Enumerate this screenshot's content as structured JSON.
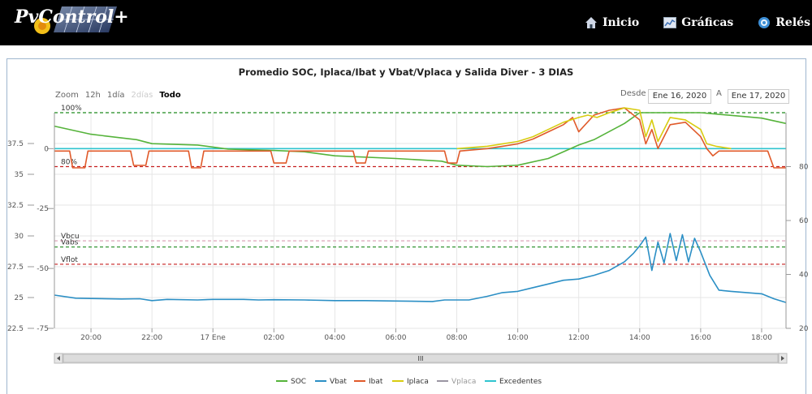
{
  "nav": {
    "logo_text": "PvControl+",
    "items": [
      {
        "label": "Inicio",
        "icon": "home-icon"
      },
      {
        "label": "Gráficas",
        "icon": "chart-icon"
      },
      {
        "label": "Relés",
        "icon": "relay-icon"
      }
    ]
  },
  "controls": {
    "zoom_label": "Zoom",
    "zoom_options": [
      "12h",
      "1día",
      "2días",
      "Todo"
    ],
    "zoom_selected": "Todo",
    "zoom_disabled": "2días",
    "desde_label": "Desde",
    "desde_value": "Ene 16, 2020",
    "a_label": "A",
    "a_value": "Ene 17, 2020",
    "scrollbar_grip": "III"
  },
  "colors": {
    "soc": "#55b33a",
    "vbat": "#2b8fc5",
    "ibat": "#e05a2a",
    "iplaca": "#d8cc10",
    "vplaca": "#9a95a2",
    "excedentes": "#2fc4cf",
    "ref_green": "#1f8a1f",
    "ref_red": "#c72020",
    "ref_pink": "#d89ab0"
  },
  "chart_data": {
    "type": "line",
    "title": "Promedio SOC, Iplaca/Ibat y Vbat/Vplaca y Salida Diver - 3 DIAS",
    "x_unit": "hour",
    "x_range": [
      18.8,
      42.8
    ],
    "x_ticks": [
      {
        "x": 20,
        "label": "20:00"
      },
      {
        "x": 22,
        "label": "22:00"
      },
      {
        "x": 24,
        "label": "17 Ene"
      },
      {
        "x": 26,
        "label": "02:00"
      },
      {
        "x": 28,
        "label": "04:00"
      },
      {
        "x": 30,
        "label": "06:00"
      },
      {
        "x": 32,
        "label": "08:00"
      },
      {
        "x": 34,
        "label": "10:00"
      },
      {
        "x": 36,
        "label": "12:00"
      },
      {
        "x": 38,
        "label": "14:00"
      },
      {
        "x": 40,
        "label": "16:00"
      },
      {
        "x": 42,
        "label": "18:00"
      }
    ],
    "axes": {
      "voltage": {
        "range": [
          22.5,
          40.0
        ],
        "ticks": [
          22.5,
          25,
          27.5,
          30,
          32.5,
          35,
          37.5
        ]
      },
      "current": {
        "range": [
          -75,
          15
        ],
        "ticks": [
          -75,
          -50,
          -25,
          0
        ]
      },
      "soc": {
        "range": [
          20,
          100
        ],
        "ticks": [
          20,
          40,
          60,
          80
        ]
      }
    },
    "reference_lines": [
      {
        "label": "100%",
        "axis": "soc",
        "value": 100,
        "color": "green"
      },
      {
        "label": "80%",
        "axis": "soc",
        "value": 80,
        "color": "red"
      },
      {
        "label": "Vbcu",
        "axis": "voltage",
        "value": 29.6,
        "color": "pink"
      },
      {
        "label": "Vabs",
        "axis": "voltage",
        "value": 29.1,
        "color": "green"
      },
      {
        "label": "Vflot",
        "axis": "voltage",
        "value": 27.7,
        "color": "red"
      }
    ],
    "legend": {
      "position": "bottom",
      "entries": [
        "SOC",
        "Vbat",
        "Ibat",
        "Iplaca",
        "Vplaca",
        "Excedentes"
      ],
      "inactive": [
        "Vplaca"
      ]
    },
    "series": [
      {
        "name": "SOC",
        "axis": "soc",
        "points": [
          [
            18.8,
            95
          ],
          [
            20,
            92
          ],
          [
            21.5,
            90
          ],
          [
            22,
            88.5
          ],
          [
            23.5,
            88
          ],
          [
            24.5,
            86.5
          ],
          [
            26,
            86
          ],
          [
            27,
            85.5
          ],
          [
            28,
            84
          ],
          [
            30,
            83
          ],
          [
            31.5,
            82
          ],
          [
            32,
            80.5
          ],
          [
            33,
            80
          ],
          [
            34,
            80.5
          ],
          [
            35,
            83
          ],
          [
            36,
            88
          ],
          [
            36.5,
            90
          ],
          [
            37.5,
            96
          ],
          [
            38,
            100
          ],
          [
            39,
            100
          ],
          [
            40,
            100
          ],
          [
            41,
            99
          ],
          [
            42,
            98
          ],
          [
            42.8,
            96
          ]
        ]
      },
      {
        "name": "Vbat",
        "axis": "voltage",
        "points": [
          [
            18.8,
            25.2
          ],
          [
            19.5,
            24.95
          ],
          [
            20,
            24.92
          ],
          [
            21,
            24.88
          ],
          [
            21.6,
            24.9
          ],
          [
            22,
            24.75
          ],
          [
            22.5,
            24.85
          ],
          [
            23.5,
            24.8
          ],
          [
            24,
            24.85
          ],
          [
            25,
            24.85
          ],
          [
            25.5,
            24.8
          ],
          [
            26,
            24.82
          ],
          [
            27,
            24.8
          ],
          [
            28,
            24.75
          ],
          [
            29,
            24.75
          ],
          [
            30,
            24.72
          ],
          [
            31.2,
            24.68
          ],
          [
            31.6,
            24.8
          ],
          [
            32.4,
            24.8
          ],
          [
            33,
            25.1
          ],
          [
            33.5,
            25.4
          ],
          [
            34,
            25.5
          ],
          [
            34.5,
            25.8
          ],
          [
            35,
            26.1
          ],
          [
            35.5,
            26.4
          ],
          [
            36,
            26.5
          ],
          [
            36.5,
            26.8
          ],
          [
            37,
            27.2
          ],
          [
            37.5,
            27.9
          ],
          [
            37.8,
            28.6
          ],
          [
            38,
            29.2
          ],
          [
            38.2,
            29.9
          ],
          [
            38.4,
            27.2
          ],
          [
            38.6,
            29.5
          ],
          [
            38.8,
            27.8
          ],
          [
            39,
            30.2
          ],
          [
            39.2,
            28.0
          ],
          [
            39.4,
            30.1
          ],
          [
            39.6,
            27.9
          ],
          [
            39.8,
            29.8
          ],
          [
            40,
            28.7
          ],
          [
            40.3,
            26.8
          ],
          [
            40.6,
            25.6
          ],
          [
            41,
            25.5
          ],
          [
            41.5,
            25.4
          ],
          [
            42,
            25.3
          ],
          [
            42.4,
            24.9
          ],
          [
            42.8,
            24.6
          ]
        ]
      },
      {
        "name": "Ibat",
        "axis": "current",
        "points": [
          [
            18.8,
            -1
          ],
          [
            19.3,
            -1
          ],
          [
            19.4,
            -8
          ],
          [
            19.8,
            -8
          ],
          [
            19.9,
            -1
          ],
          [
            21.3,
            -1
          ],
          [
            21.4,
            -7
          ],
          [
            21.8,
            -7
          ],
          [
            21.9,
            -1
          ],
          [
            23.2,
            -1
          ],
          [
            23.3,
            -8
          ],
          [
            23.6,
            -8
          ],
          [
            23.7,
            -1
          ],
          [
            25.9,
            -1
          ],
          [
            26,
            -6
          ],
          [
            26.4,
            -6
          ],
          [
            26.5,
            -1
          ],
          [
            28.6,
            -1
          ],
          [
            28.7,
            -6
          ],
          [
            29,
            -6
          ],
          [
            29.1,
            -1
          ],
          [
            31.6,
            -1
          ],
          [
            31.7,
            -6
          ],
          [
            32,
            -6
          ],
          [
            32.1,
            -1
          ],
          [
            33,
            0
          ],
          [
            33.5,
            1
          ],
          [
            34,
            2
          ],
          [
            34.5,
            4
          ],
          [
            35,
            7
          ],
          [
            35.5,
            10
          ],
          [
            35.8,
            13
          ],
          [
            36,
            7
          ],
          [
            36.5,
            14
          ],
          [
            37,
            16
          ],
          [
            37.5,
            17
          ],
          [
            38,
            12
          ],
          [
            38.2,
            2
          ],
          [
            38.4,
            8
          ],
          [
            38.6,
            0
          ],
          [
            39,
            10
          ],
          [
            39.5,
            11
          ],
          [
            40,
            5
          ],
          [
            40.2,
            0
          ],
          [
            40.4,
            -3
          ],
          [
            40.6,
            -1
          ],
          [
            42.2,
            -1
          ],
          [
            42.4,
            -8
          ],
          [
            42.8,
            -8
          ]
        ]
      },
      {
        "name": "Iplaca",
        "axis": "current",
        "points": [
          [
            32,
            0
          ],
          [
            33,
            1
          ],
          [
            33.5,
            2
          ],
          [
            34,
            3
          ],
          [
            34.5,
            5
          ],
          [
            35,
            8
          ],
          [
            35.5,
            11
          ],
          [
            36,
            13
          ],
          [
            36.3,
            14
          ],
          [
            36.6,
            13
          ],
          [
            37,
            15
          ],
          [
            37.5,
            17
          ],
          [
            38,
            16
          ],
          [
            38.2,
            5
          ],
          [
            38.4,
            12
          ],
          [
            38.6,
            3
          ],
          [
            39,
            13
          ],
          [
            39.5,
            12
          ],
          [
            40,
            8
          ],
          [
            40.2,
            2
          ],
          [
            40.5,
            1
          ],
          [
            41,
            0
          ]
        ]
      },
      {
        "name": "Vplaca",
        "axis": "current",
        "points": []
      },
      {
        "name": "Excedentes",
        "axis": "current",
        "points": [
          [
            18.8,
            0
          ],
          [
            42.8,
            0
          ]
        ]
      }
    ]
  }
}
